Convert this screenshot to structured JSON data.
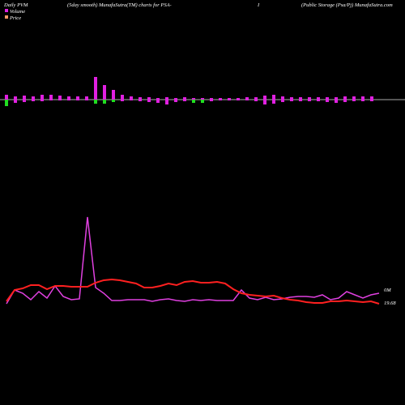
{
  "chart_data": {
    "type": "line",
    "title": "Daily PVM",
    "subtitle": "(5day smooth) MunafaSutra(TM) charts for PSA-",
    "symbol": "I",
    "company": "(Public Storage (Psa/Pj) MunafaSutra.com",
    "bars": {
      "upper": [
        6,
        4,
        5,
        4,
        6,
        6,
        5,
        4,
        4,
        4,
        28,
        18,
        12,
        6,
        4,
        3,
        3,
        2,
        3,
        2,
        3,
        2,
        2,
        2,
        2,
        2,
        2,
        3,
        3,
        5,
        6,
        4,
        3,
        3,
        3,
        3,
        3,
        3,
        4,
        4,
        4,
        4
      ],
      "lower": [
        -8,
        -4,
        -3,
        -2,
        -2,
        -1,
        -1,
        -1,
        -1,
        -1,
        -5,
        -5,
        -3,
        -2,
        -1,
        -2,
        -3,
        -4,
        -6,
        -3,
        -2,
        -4,
        -4,
        -2,
        -1,
        -1,
        -1,
        -1,
        -2,
        -6,
        -5,
        -3,
        -2,
        -2,
        -2,
        -2,
        -3,
        -4,
        -3,
        -2,
        -2,
        -2
      ],
      "upper_color": "#e020e0",
      "lower_colors": [
        "#22dd22",
        "#e020e0",
        "#e020e0",
        "#e020e0",
        "#e020e0",
        "#e020e0",
        "#e020e0",
        "#e020e0",
        "#e020e0",
        "#e020e0",
        "#22dd22",
        "#22dd22",
        "#22dd22",
        "#e020e0",
        "#e020e0",
        "#e020e0",
        "#e020e0",
        "#e020e0",
        "#e020e0",
        "#e020e0",
        "#e020e0",
        "#22dd22",
        "#22dd22",
        "#e020e0",
        "#e020e0",
        "#e020e0",
        "#e020e0",
        "#e020e0",
        "#e020e0",
        "#e020e0",
        "#e020e0",
        "#e020e0",
        "#e020e0",
        "#e020e0",
        "#e020e0",
        "#e020e0",
        "#e020e0",
        "#e020e0",
        "#e020e0",
        "#e020e0",
        "#e020e0",
        "#e020e0"
      ],
      "ylim": [
        -20,
        40
      ]
    },
    "series": [
      {
        "name": "Volume",
        "color": "#e040e0",
        "end_label": "0M",
        "values": [
          25,
          42,
          38,
          30,
          40,
          32,
          47,
          34,
          30,
          31,
          132,
          45,
          38,
          29,
          29,
          30,
          30,
          30,
          28,
          30,
          31,
          29,
          28,
          30,
          29,
          30,
          29,
          29,
          29,
          42,
          32,
          30,
          33,
          30,
          31,
          33,
          34,
          34,
          33,
          36,
          30,
          32,
          40,
          36,
          32,
          36,
          38
        ]
      },
      {
        "name": "Price",
        "color": "#ff2020",
        "end_label": "19.68",
        "values": [
          28,
          42,
          44,
          48,
          48,
          43,
          47,
          47,
          46,
          46,
          46,
          51,
          54,
          55,
          54,
          52,
          50,
          45,
          45,
          47,
          50,
          48,
          52,
          53,
          51,
          51,
          52,
          50,
          43,
          38,
          36,
          35,
          34,
          35,
          32,
          30,
          29,
          27,
          26,
          26,
          28,
          28,
          29,
          28,
          27,
          28,
          25
        ]
      }
    ],
    "ylim": [
      0,
      140
    ],
    "legend_colors": [
      "#e020e0",
      "#ff9966"
    ]
  }
}
